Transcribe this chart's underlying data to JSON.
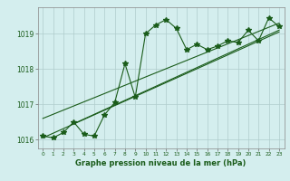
{
  "x": [
    0,
    1,
    2,
    3,
    4,
    5,
    6,
    7,
    8,
    9,
    10,
    11,
    12,
    13,
    14,
    15,
    16,
    17,
    18,
    19,
    20,
    21,
    22,
    23
  ],
  "y": [
    1016.1,
    1016.05,
    1016.2,
    1016.5,
    1016.15,
    1016.1,
    1016.7,
    1017.05,
    1018.15,
    1017.2,
    1019.0,
    1019.25,
    1019.4,
    1019.15,
    1018.55,
    1018.7,
    1018.55,
    1018.65,
    1018.8,
    1018.75,
    1019.1,
    1018.8,
    1019.45,
    1019.2
  ],
  "trend1_x": [
    0,
    23
  ],
  "trend1_y": [
    1016.05,
    1019.05
  ],
  "trend2_x": [
    0,
    23
  ],
  "trend2_y": [
    1016.6,
    1019.3
  ],
  "trend3_x": [
    3,
    23
  ],
  "trend3_y": [
    1016.45,
    1019.1
  ],
  "ylim": [
    1015.75,
    1019.75
  ],
  "yticks": [
    1016,
    1017,
    1018,
    1019
  ],
  "xlim": [
    -0.5,
    23.5
  ],
  "xticks": [
    0,
    1,
    2,
    3,
    4,
    5,
    6,
    7,
    8,
    9,
    10,
    11,
    12,
    13,
    14,
    15,
    16,
    17,
    18,
    19,
    20,
    21,
    22,
    23
  ],
  "xlabel": "Graphe pression niveau de la mer (hPa)",
  "line_color": "#1a5c1a",
  "bg_color": "#d4eeee",
  "grid_color": "#b0cccc",
  "marker": "*",
  "marker_size": 4,
  "title": ""
}
